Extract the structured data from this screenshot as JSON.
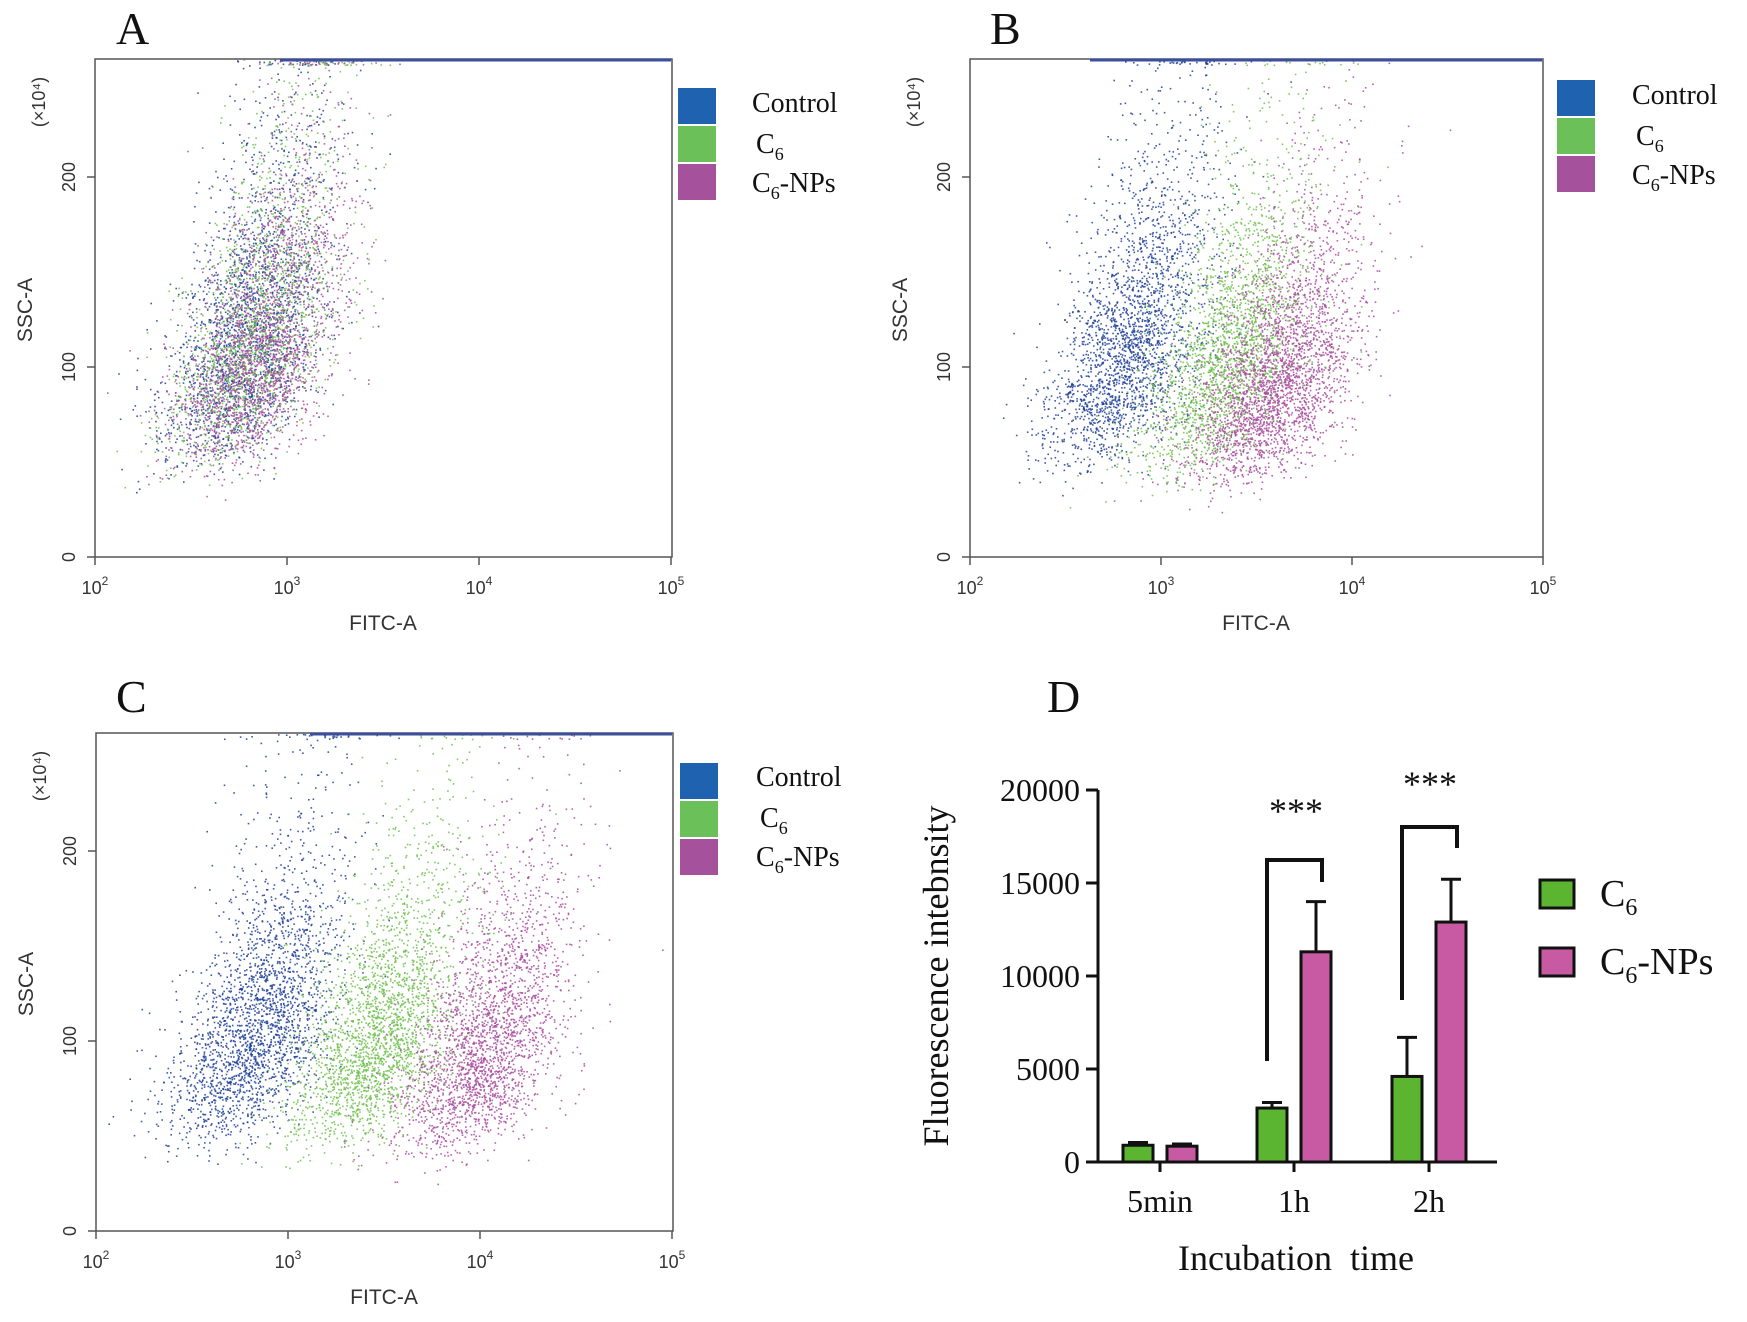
{
  "colors": {
    "control": "#1f3f99",
    "c6": "#6dbf4b",
    "c6np": "#a84a9e",
    "legend_control": "#1f63b0",
    "legend_c6": "#6cc05a",
    "legend_c6np": "#a5519c",
    "bar_c6": "#5cb531",
    "bar_c6np": "#c85aa3"
  },
  "chart_data": [
    {
      "panel": "A",
      "type": "scatter",
      "xlabel": "FITC-A",
      "ylabel": "SSC-A",
      "y_multiplier": "(×10⁴)",
      "x_scale": "log",
      "xlim": [
        100,
        100000
      ],
      "ylim": [
        0,
        262
      ],
      "x_ticks": [
        {
          "base": "10",
          "exp": "2"
        },
        {
          "base": "10",
          "exp": "3"
        },
        {
          "base": "10",
          "exp": "4"
        },
        {
          "base": "10",
          "exp": "5"
        }
      ],
      "y_ticks": [
        "0",
        "100",
        "200"
      ],
      "legend": [
        {
          "key": "control",
          "label": "Control",
          "sub": ""
        },
        {
          "key": "c6",
          "label": "C",
          "sub": "6"
        },
        {
          "key": "c6np",
          "label": "C",
          "sub": "6",
          "suffix": "-NPs"
        }
      ],
      "series": [
        {
          "key": "control",
          "x_center": 650,
          "y_center": 120,
          "n": 2200
        },
        {
          "key": "c6",
          "x_center": 700,
          "y_center": 120,
          "n": 1800
        },
        {
          "key": "c6np",
          "x_center": 760,
          "y_center": 115,
          "n": 2200
        }
      ]
    },
    {
      "panel": "B",
      "type": "scatter",
      "xlabel": "FITC-A",
      "ylabel": "SSC-A",
      "y_multiplier": "(×10⁴)",
      "x_scale": "log",
      "xlim": [
        100,
        100000
      ],
      "ylim": [
        0,
        262
      ],
      "x_ticks": [
        {
          "base": "10",
          "exp": "2"
        },
        {
          "base": "10",
          "exp": "3"
        },
        {
          "base": "10",
          "exp": "4"
        },
        {
          "base": "10",
          "exp": "5"
        }
      ],
      "y_ticks": [
        "0",
        "100",
        "200"
      ],
      "legend": [
        {
          "key": "control",
          "label": "Control",
          "sub": ""
        },
        {
          "key": "c6",
          "label": "C",
          "sub": "6"
        },
        {
          "key": "c6np",
          "label": "C",
          "sub": "6",
          "suffix": "-NPs"
        }
      ],
      "series": [
        {
          "key": "control",
          "x_center": 700,
          "y_center": 115,
          "n": 2500
        },
        {
          "key": "c6",
          "x_center": 2300,
          "y_center": 110,
          "n": 2300
        },
        {
          "key": "c6np",
          "x_center": 4200,
          "y_center": 95,
          "n": 2800
        }
      ]
    },
    {
      "panel": "C",
      "type": "scatter",
      "xlabel": "FITC-A",
      "ylabel": "SSC-A",
      "y_multiplier": "(×10⁴)",
      "x_scale": "log",
      "xlim": [
        100,
        100000
      ],
      "ylim": [
        0,
        262
      ],
      "x_ticks": [
        {
          "base": "10",
          "exp": "2"
        },
        {
          "base": "10",
          "exp": "3"
        },
        {
          "base": "10",
          "exp": "4"
        },
        {
          "base": "10",
          "exp": "5"
        }
      ],
      "y_ticks": [
        "0",
        "100",
        "200"
      ],
      "legend": [
        {
          "key": "control",
          "label": "Control",
          "sub": ""
        },
        {
          "key": "c6",
          "label": "C",
          "sub": "6"
        },
        {
          "key": "c6np",
          "label": "C",
          "sub": "6",
          "suffix": "-NPs"
        }
      ],
      "series": [
        {
          "key": "control",
          "x_center": 700,
          "y_center": 110,
          "n": 2500
        },
        {
          "key": "c6",
          "x_center": 3000,
          "y_center": 105,
          "n": 2500
        },
        {
          "key": "c6np",
          "x_center": 11000,
          "y_center": 100,
          "n": 2500
        }
      ]
    },
    {
      "panel": "D",
      "type": "bar",
      "xlabel": "Incubation  time",
      "ylabel": "Fluorescence intebnsity",
      "categories": [
        "5min",
        "1h",
        "2h"
      ],
      "ylim": [
        0,
        20000
      ],
      "y_ticks": [
        "0",
        "5000",
        "10000",
        "15000",
        "20000"
      ],
      "series": [
        {
          "key": "c6",
          "label": "C",
          "sub": "6",
          "values": [
            900,
            2900,
            4600
          ],
          "errors": [
            150,
            300,
            2100
          ]
        },
        {
          "key": "c6np",
          "label": "C",
          "sub": "6",
          "suffix": "-NPs",
          "values": [
            850,
            11300,
            12900
          ],
          "errors": [
            120,
            2700,
            2300
          ]
        }
      ],
      "significance": [
        {
          "category": "1h",
          "label": "***"
        },
        {
          "category": "2h",
          "label": "***"
        }
      ]
    }
  ]
}
